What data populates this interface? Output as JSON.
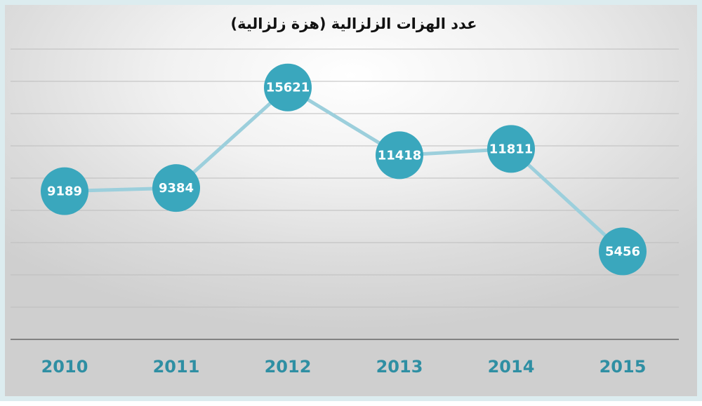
{
  "chart_data": {
    "type": "line",
    "title": "عدد الهزات الزلزالية (هزة زلزالية)",
    "categories": [
      "2010",
      "2011",
      "2012",
      "2013",
      "2014",
      "2015"
    ],
    "series": [
      {
        "values": [
          9189,
          9384,
          15621,
          11418,
          11811,
          5456
        ]
      }
    ],
    "ylim": [
      0,
      19000
    ],
    "grid": true,
    "data_labels": true,
    "colors": {
      "marker": "#3aa7bd",
      "line": "#9ccfdc",
      "data_label": "#ffffff",
      "x_tick_label": "#2f8fa3",
      "title": "#111111",
      "frame_border": "#dcecef"
    }
  }
}
